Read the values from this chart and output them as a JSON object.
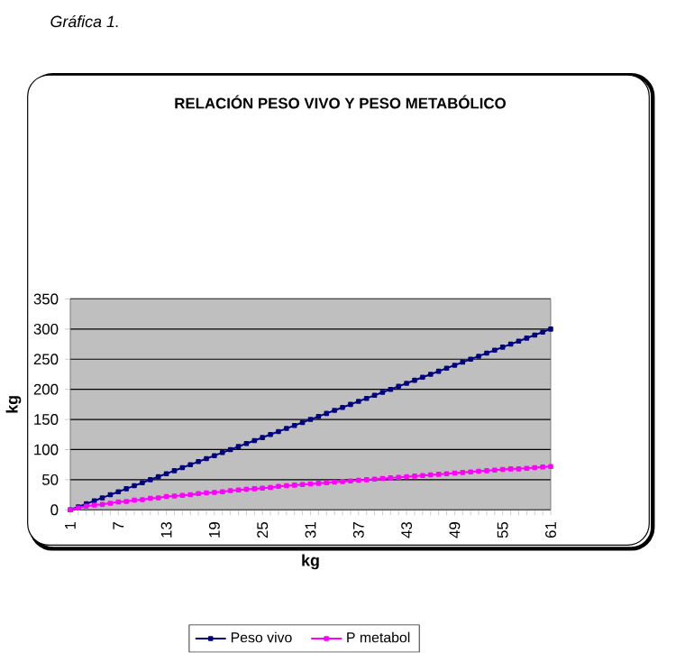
{
  "chart_data": {
    "type": "line",
    "title": "RELACIÓN PESO VIVO Y PESO METABÓLICO",
    "xlabel": "kg",
    "ylabel": "kg",
    "annotations": [
      "Gráfica 1."
    ],
    "categories": [
      "1",
      null,
      null,
      null,
      null,
      null,
      "7",
      null,
      null,
      null,
      null,
      null,
      "13",
      null,
      null,
      null,
      null,
      null,
      "19",
      null,
      null,
      null,
      null,
      null,
      "25",
      null,
      null,
      null,
      null,
      null,
      "31",
      null,
      null,
      null,
      null,
      null,
      "37",
      null,
      null,
      null,
      null,
      null,
      "43",
      null,
      null,
      null,
      null,
      null,
      "49",
      null,
      null,
      null,
      null,
      null,
      "55",
      null,
      null,
      null,
      null,
      null,
      "61"
    ],
    "series": [
      {
        "name": "Peso vivo",
        "color": "#000080",
        "values": [
          0,
          5,
          10,
          15,
          20,
          25,
          30,
          35,
          40,
          45,
          50,
          55,
          60,
          65,
          70,
          75,
          80,
          85,
          90,
          95,
          100,
          105,
          110,
          115,
          120,
          125,
          130,
          135,
          140,
          145,
          150,
          155,
          160,
          165,
          170,
          175,
          180,
          185,
          190,
          195,
          200,
          205,
          210,
          215,
          220,
          225,
          230,
          235,
          240,
          245,
          250,
          255,
          260,
          265,
          270,
          275,
          280,
          285,
          290,
          295,
          300
        ]
      },
      {
        "name": "P metabol",
        "color": "#ff00ff",
        "values": [
          0,
          3,
          6,
          8,
          9,
          11,
          13,
          14,
          16,
          17,
          19,
          20,
          22,
          23,
          24,
          25,
          27,
          28,
          29,
          30,
          32,
          33,
          34,
          35,
          36,
          37,
          39,
          40,
          41,
          42,
          43,
          44,
          45,
          46,
          47,
          48,
          49,
          50,
          51,
          52,
          53,
          54,
          55,
          56,
          57,
          58,
          59,
          60,
          61,
          62,
          63,
          64,
          65,
          66,
          67,
          68,
          68,
          69,
          70,
          71,
          72
        ]
      }
    ],
    "ylim": [
      0,
      350
    ],
    "yticks": [
      0,
      50,
      100,
      150,
      200,
      250,
      300,
      350
    ],
    "grid": "y",
    "legend": "bottom",
    "marker": "square",
    "line_style": "solid"
  }
}
